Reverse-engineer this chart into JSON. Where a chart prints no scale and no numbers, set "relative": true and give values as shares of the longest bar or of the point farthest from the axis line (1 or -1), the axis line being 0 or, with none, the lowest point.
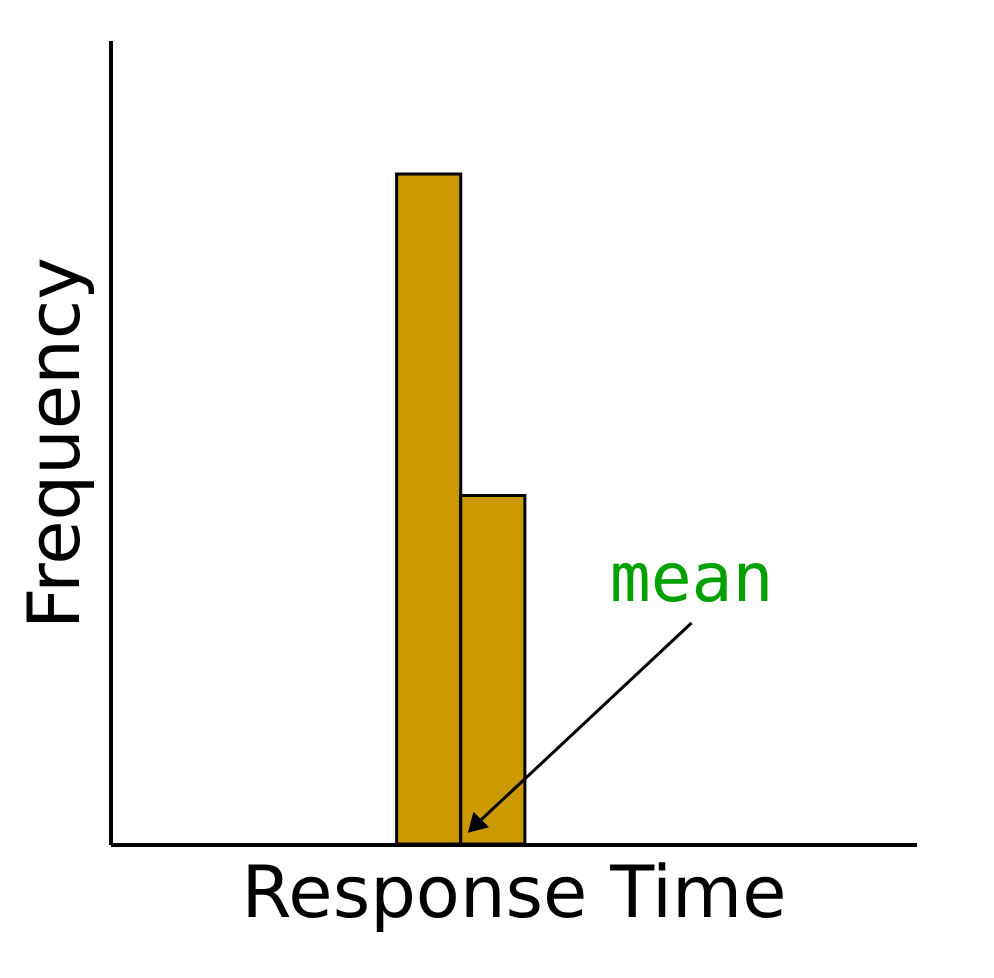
{
  "chart_data": {
    "type": "bar",
    "relative": true,
    "xlabel": "Response Time",
    "ylabel": "Frequency",
    "categories": [
      null,
      null
    ],
    "values": [
      1,
      0.52
    ],
    "color": "#cc9900",
    "grid": false,
    "annotations": [
      "mean"
    ]
  }
}
